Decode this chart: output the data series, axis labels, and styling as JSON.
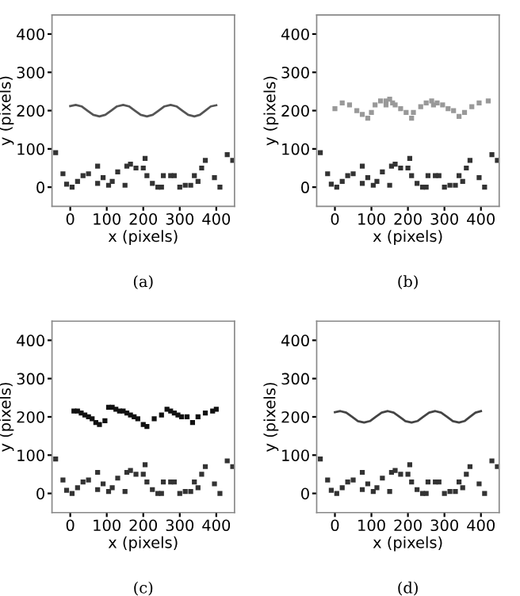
{
  "chart_data": [
    {
      "type": "scatter",
      "xlabel": "x (pixels)",
      "ylabel": "y (pixels)",
      "xlim": [
        -50,
        450
      ],
      "ylim": [
        -50,
        450
      ],
      "xticks": [
        0,
        100,
        200,
        300,
        400
      ],
      "yticks": [
        0,
        100,
        200,
        300,
        400
      ],
      "annotations": [
        "(a)"
      ],
      "series": [
        {
          "type": "line",
          "color": "#555555",
          "marker": "none",
          "x": [
            0,
            15,
            31,
            47,
            63,
            80,
            96,
            112,
            128,
            145,
            161,
            177,
            193,
            210,
            226,
            242,
            258,
            275,
            291,
            307,
            323,
            340,
            355,
            370,
            385,
            400
          ],
          "values": [
            212,
            215,
            211,
            200,
            189,
            185,
            189,
            200,
            211,
            215,
            211,
            200,
            189,
            185,
            189,
            200,
            211,
            215,
            211,
            200,
            189,
            185,
            189,
            200,
            211,
            214
          ]
        },
        {
          "color": "#333333",
          "marker": "square",
          "x": [
            -40,
            -20,
            -10,
            5,
            20,
            35,
            50,
            75,
            75,
            90,
            105,
            115,
            130,
            150,
            155,
            165,
            180,
            200,
            205,
            210,
            225,
            240,
            250,
            255,
            275,
            285,
            300,
            315,
            330,
            340,
            350,
            360,
            370,
            395,
            410,
            430,
            445
          ],
          "values": [
            90,
            35,
            8,
            0,
            15,
            30,
            35,
            55,
            10,
            25,
            5,
            15,
            40,
            5,
            55,
            60,
            50,
            50,
            75,
            30,
            10,
            0,
            0,
            30,
            30,
            30,
            0,
            5,
            5,
            30,
            15,
            50,
            70,
            25,
            0,
            85,
            70
          ]
        }
      ]
    },
    {
      "type": "scatter",
      "xlabel": "x (pixels)",
      "ylabel": "y (pixels)",
      "xlim": [
        -50,
        450
      ],
      "ylim": [
        -50,
        450
      ],
      "xticks": [
        0,
        100,
        200,
        300,
        400
      ],
      "yticks": [
        0,
        100,
        200,
        300,
        400
      ],
      "annotations": [
        "(b)"
      ],
      "series": [
        {
          "color": "#999999",
          "marker": "square",
          "x": [
            0,
            20,
            40,
            60,
            75,
            90,
            100,
            110,
            125,
            140,
            158,
            165,
            180,
            195,
            210,
            215,
            235,
            250,
            265,
            280,
            295,
            310,
            325,
            340,
            355,
            375,
            395,
            420,
            140,
            150,
            270
          ],
          "values": [
            205,
            220,
            215,
            200,
            190,
            180,
            195,
            215,
            225,
            225,
            220,
            215,
            205,
            195,
            180,
            195,
            210,
            220,
            225,
            220,
            215,
            205,
            200,
            185,
            195,
            210,
            220,
            225,
            215,
            230,
            215
          ]
        },
        {
          "color": "#333333",
          "marker": "square",
          "x": [
            -40,
            -20,
            -10,
            5,
            20,
            35,
            50,
            75,
            75,
            90,
            105,
            115,
            130,
            150,
            155,
            165,
            180,
            200,
            205,
            210,
            225,
            240,
            250,
            255,
            275,
            285,
            300,
            315,
            330,
            340,
            350,
            360,
            370,
            395,
            410,
            430,
            445
          ],
          "values": [
            90,
            35,
            8,
            0,
            15,
            30,
            35,
            55,
            10,
            25,
            5,
            15,
            40,
            5,
            55,
            60,
            50,
            50,
            75,
            30,
            10,
            0,
            0,
            30,
            30,
            30,
            0,
            5,
            5,
            30,
            15,
            50,
            70,
            25,
            0,
            85,
            70
          ]
        }
      ]
    },
    {
      "type": "scatter",
      "xlabel": "x (pixels)",
      "ylabel": "y (pixels)",
      "xlim": [
        -50,
        450
      ],
      "ylim": [
        -50,
        450
      ],
      "xticks": [
        0,
        100,
        200,
        300,
        400
      ],
      "yticks": [
        0,
        100,
        200,
        300,
        400
      ],
      "annotations": [
        "(c)"
      ],
      "series": [
        {
          "color": "#111111",
          "marker": "square",
          "x": [
            10,
            20,
            30,
            40,
            50,
            60,
            70,
            80,
            95,
            105,
            115,
            125,
            135,
            145,
            155,
            165,
            175,
            185,
            200,
            210,
            230,
            250,
            265,
            275,
            285,
            295,
            305,
            320,
            335,
            350,
            370,
            390,
            400
          ],
          "values": [
            215,
            215,
            210,
            205,
            200,
            195,
            185,
            180,
            190,
            225,
            225,
            220,
            215,
            215,
            210,
            205,
            200,
            195,
            180,
            175,
            195,
            205,
            220,
            215,
            210,
            205,
            200,
            200,
            185,
            200,
            210,
            215,
            220
          ]
        },
        {
          "color": "#333333",
          "marker": "square",
          "x": [
            -40,
            -20,
            -10,
            5,
            20,
            35,
            50,
            75,
            75,
            90,
            105,
            115,
            130,
            150,
            155,
            165,
            180,
            200,
            205,
            210,
            225,
            240,
            250,
            255,
            275,
            285,
            300,
            315,
            330,
            340,
            350,
            360,
            370,
            395,
            410,
            430,
            445
          ],
          "values": [
            90,
            35,
            8,
            0,
            15,
            30,
            35,
            55,
            10,
            25,
            5,
            15,
            40,
            5,
            55,
            60,
            50,
            50,
            75,
            30,
            10,
            0,
            0,
            30,
            30,
            30,
            0,
            5,
            5,
            30,
            15,
            50,
            70,
            25,
            0,
            85,
            70
          ]
        }
      ]
    },
    {
      "type": "scatter",
      "xlabel": "x (pixels)",
      "ylabel": "y (pixels)",
      "xlim": [
        -50,
        450
      ],
      "ylim": [
        -50,
        450
      ],
      "xticks": [
        0,
        100,
        200,
        300,
        400
      ],
      "yticks": [
        0,
        100,
        200,
        300,
        400
      ],
      "annotations": [
        "(d)"
      ],
      "series": [
        {
          "type": "line",
          "color": "#444444",
          "marker": "none",
          "x": [
            0,
            15,
            31,
            47,
            63,
            80,
            96,
            112,
            128,
            145,
            161,
            177,
            193,
            210,
            226,
            242,
            258,
            275,
            291,
            307,
            323,
            340,
            355,
            370,
            385,
            400
          ],
          "values": [
            212,
            215,
            211,
            200,
            189,
            185,
            189,
            200,
            211,
            215,
            211,
            200,
            189,
            185,
            189,
            200,
            211,
            215,
            211,
            200,
            189,
            185,
            189,
            200,
            211,
            215
          ]
        },
        {
          "color": "#333333",
          "marker": "square",
          "x": [
            -40,
            -20,
            -10,
            5,
            20,
            35,
            50,
            75,
            75,
            90,
            105,
            115,
            130,
            150,
            155,
            165,
            180,
            200,
            205,
            210,
            225,
            240,
            250,
            255,
            275,
            285,
            300,
            315,
            330,
            340,
            350,
            360,
            370,
            395,
            410,
            430,
            445
          ],
          "values": [
            90,
            35,
            8,
            0,
            15,
            30,
            35,
            55,
            10,
            25,
            5,
            15,
            40,
            5,
            55,
            60,
            50,
            50,
            75,
            30,
            10,
            0,
            0,
            30,
            30,
            30,
            0,
            5,
            5,
            30,
            15,
            50,
            70,
            25,
            0,
            85,
            70
          ]
        }
      ]
    }
  ]
}
